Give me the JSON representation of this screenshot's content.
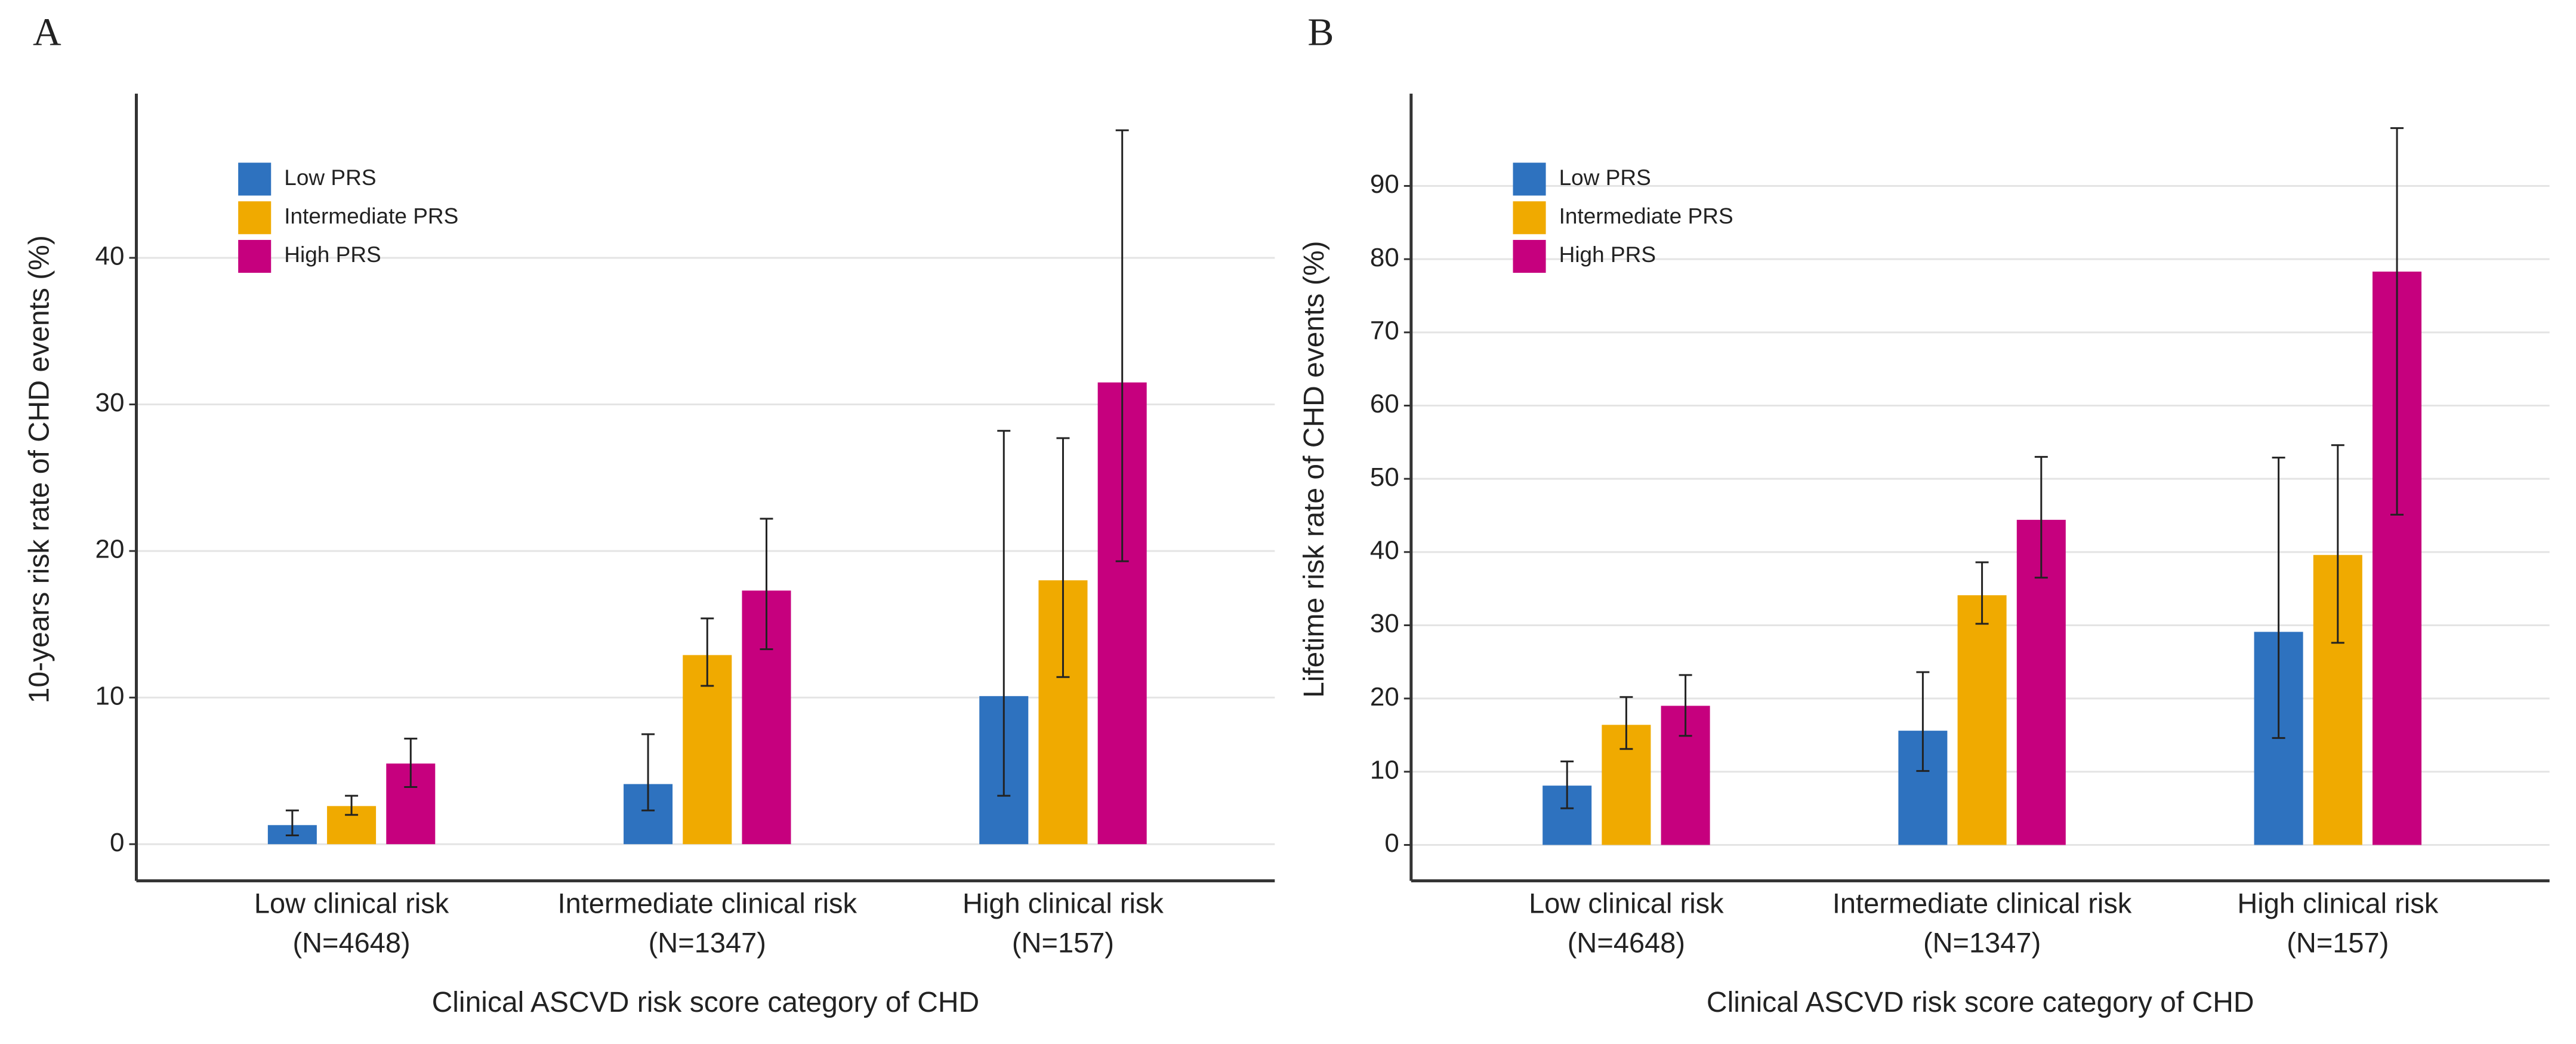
{
  "chart_data": [
    {
      "type": "bar",
      "panel": "A",
      "ylabel": "10-years risk rate of CHD events (%)",
      "xlabel": "Clinical ASCVD risk score category of CHD",
      "categories": [
        [
          "Low clinical risk",
          "(N=4648)"
        ],
        [
          "Intermediate clinical risk",
          "(N=1347)"
        ],
        [
          "High clinical risk",
          "(N=157)"
        ]
      ],
      "series": [
        {
          "name": "Low PRS",
          "color": "#2e72bf",
          "values": [
            1.3,
            4.1,
            10.1
          ],
          "lower": [
            0.6,
            2.3,
            3.3
          ],
          "upper": [
            2.3,
            7.5,
            28.2
          ]
        },
        {
          "name": "Intermediate PRS",
          "color": "#f0aa00",
          "values": [
            2.6,
            12.9,
            18.0
          ],
          "lower": [
            2.0,
            10.8,
            11.4
          ],
          "upper": [
            3.3,
            15.4,
            27.7
          ]
        },
        {
          "name": "High PRS",
          "color": "#c6007e",
          "values": [
            5.5,
            17.3,
            31.5
          ],
          "lower": [
            3.9,
            13.3,
            19.3
          ],
          "upper": [
            7.2,
            22.2,
            48.7
          ]
        }
      ],
      "ylim": [
        -2.5,
        51.2
      ],
      "yticks": [
        0,
        10,
        20,
        30,
        40
      ],
      "grid": true,
      "legend": "top-left"
    },
    {
      "type": "bar",
      "panel": "B",
      "ylabel": "Lifetime risk rate of CHD events (%)",
      "xlabel": "Clinical ASCVD risk score category of CHD",
      "categories": [
        [
          "Low clinical risk",
          "(N=4648)"
        ],
        [
          "Intermediate clinical risk",
          "(N=1347)"
        ],
        [
          "High clinical risk",
          "(N=157)"
        ]
      ],
      "series": [
        {
          "name": "Low PRS",
          "color": "#2e72bf",
          "values": [
            8.1,
            15.6,
            29.1
          ],
          "lower": [
            5.0,
            10.1,
            14.6
          ],
          "upper": [
            11.4,
            23.6,
            52.9
          ]
        },
        {
          "name": "Intermediate PRS",
          "color": "#f0aa00",
          "values": [
            16.4,
            34.1,
            39.6
          ],
          "lower": [
            13.1,
            30.2,
            27.6
          ],
          "upper": [
            20.2,
            38.6,
            54.6
          ]
        },
        {
          "name": "High PRS",
          "color": "#c6007e",
          "values": [
            19.0,
            44.4,
            78.3
          ],
          "lower": [
            14.9,
            36.5,
            45.1
          ],
          "upper": [
            23.2,
            53.0,
            97.9
          ]
        }
      ],
      "ylim": [
        -4.9,
        102.6
      ],
      "yticks": [
        0,
        10,
        20,
        30,
        40,
        50,
        60,
        70,
        80,
        90
      ],
      "grid": true,
      "legend": "top-left"
    }
  ]
}
